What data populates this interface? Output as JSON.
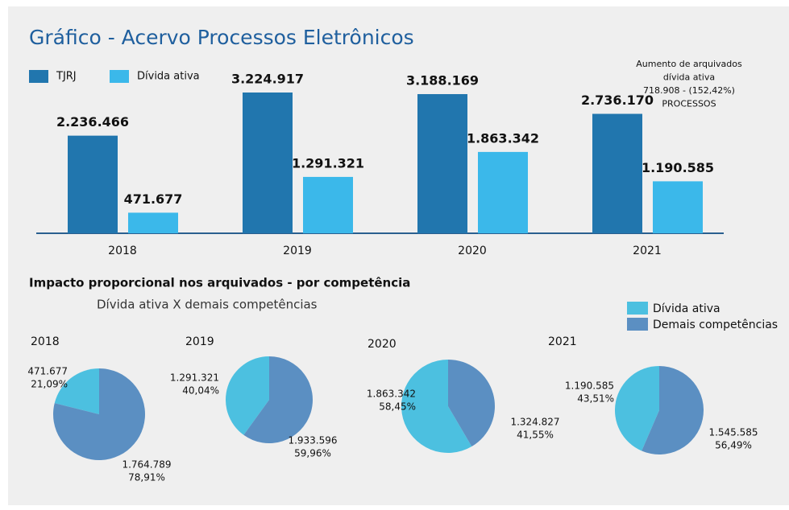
{
  "chart_data": [
    {
      "type": "bar",
      "title": "Gráfico - Acervo Processos Eletrônicos",
      "categories": [
        "2018",
        "2019",
        "2020",
        "2021"
      ],
      "series": [
        {
          "name": "TJRJ",
          "color": "#2176ae",
          "values": [
            2236466,
            3224917,
            3188169,
            2736170
          ],
          "value_labels": [
            "2.236.466",
            "3.224.917",
            "3.188.169",
            "2.736.170"
          ]
        },
        {
          "name": "Dívida ativa",
          "color": "#3bb8ea",
          "values": [
            471677,
            1291321,
            1863342,
            1190585
          ],
          "value_labels": [
            "471.677",
            "1.291.321",
            "1.863.342",
            "1.190.585"
          ]
        }
      ],
      "annotation": [
        "Aumento de arquivados",
        "dívida ativa",
        "718.908 - (152,42%)",
        "PROCESSOS"
      ]
    },
    {
      "type": "pie",
      "title": "Impacto proporcional nos arquivados - por competência",
      "subtitle": "Dívida ativa X demais competências",
      "categories": [
        "Dívida ativa",
        "Demais competências"
      ],
      "colors": [
        "#4cc0e0",
        "#5b8fc2"
      ],
      "pies": [
        {
          "title": "2018",
          "values": [
            471677,
            1764789
          ],
          "value_labels": [
            "471.677",
            "1.764.789"
          ],
          "percents": [
            21.09,
            78.91
          ],
          "percent_labels": [
            "21,09%",
            "78,91%"
          ]
        },
        {
          "title": "2019",
          "values": [
            1291321,
            1933596
          ],
          "value_labels": [
            "1.291.321",
            "1.933.596"
          ],
          "percents": [
            40.04,
            59.96
          ],
          "percent_labels": [
            "40,04%",
            "59,96%"
          ]
        },
        {
          "title": "2020",
          "values": [
            1863342,
            1324827
          ],
          "value_labels": [
            "1.863.342",
            "1.324.827"
          ],
          "percents": [
            58.45,
            41.55
          ],
          "percent_labels": [
            "58,45%",
            "41,55%"
          ]
        },
        {
          "title": "2021",
          "values": [
            1190585,
            1545585
          ],
          "value_labels": [
            "1.190.585",
            "1.545.585"
          ],
          "percents": [
            43.51,
            56.49
          ],
          "percent_labels": [
            "43,51%",
            "56,49%"
          ]
        }
      ]
    }
  ]
}
